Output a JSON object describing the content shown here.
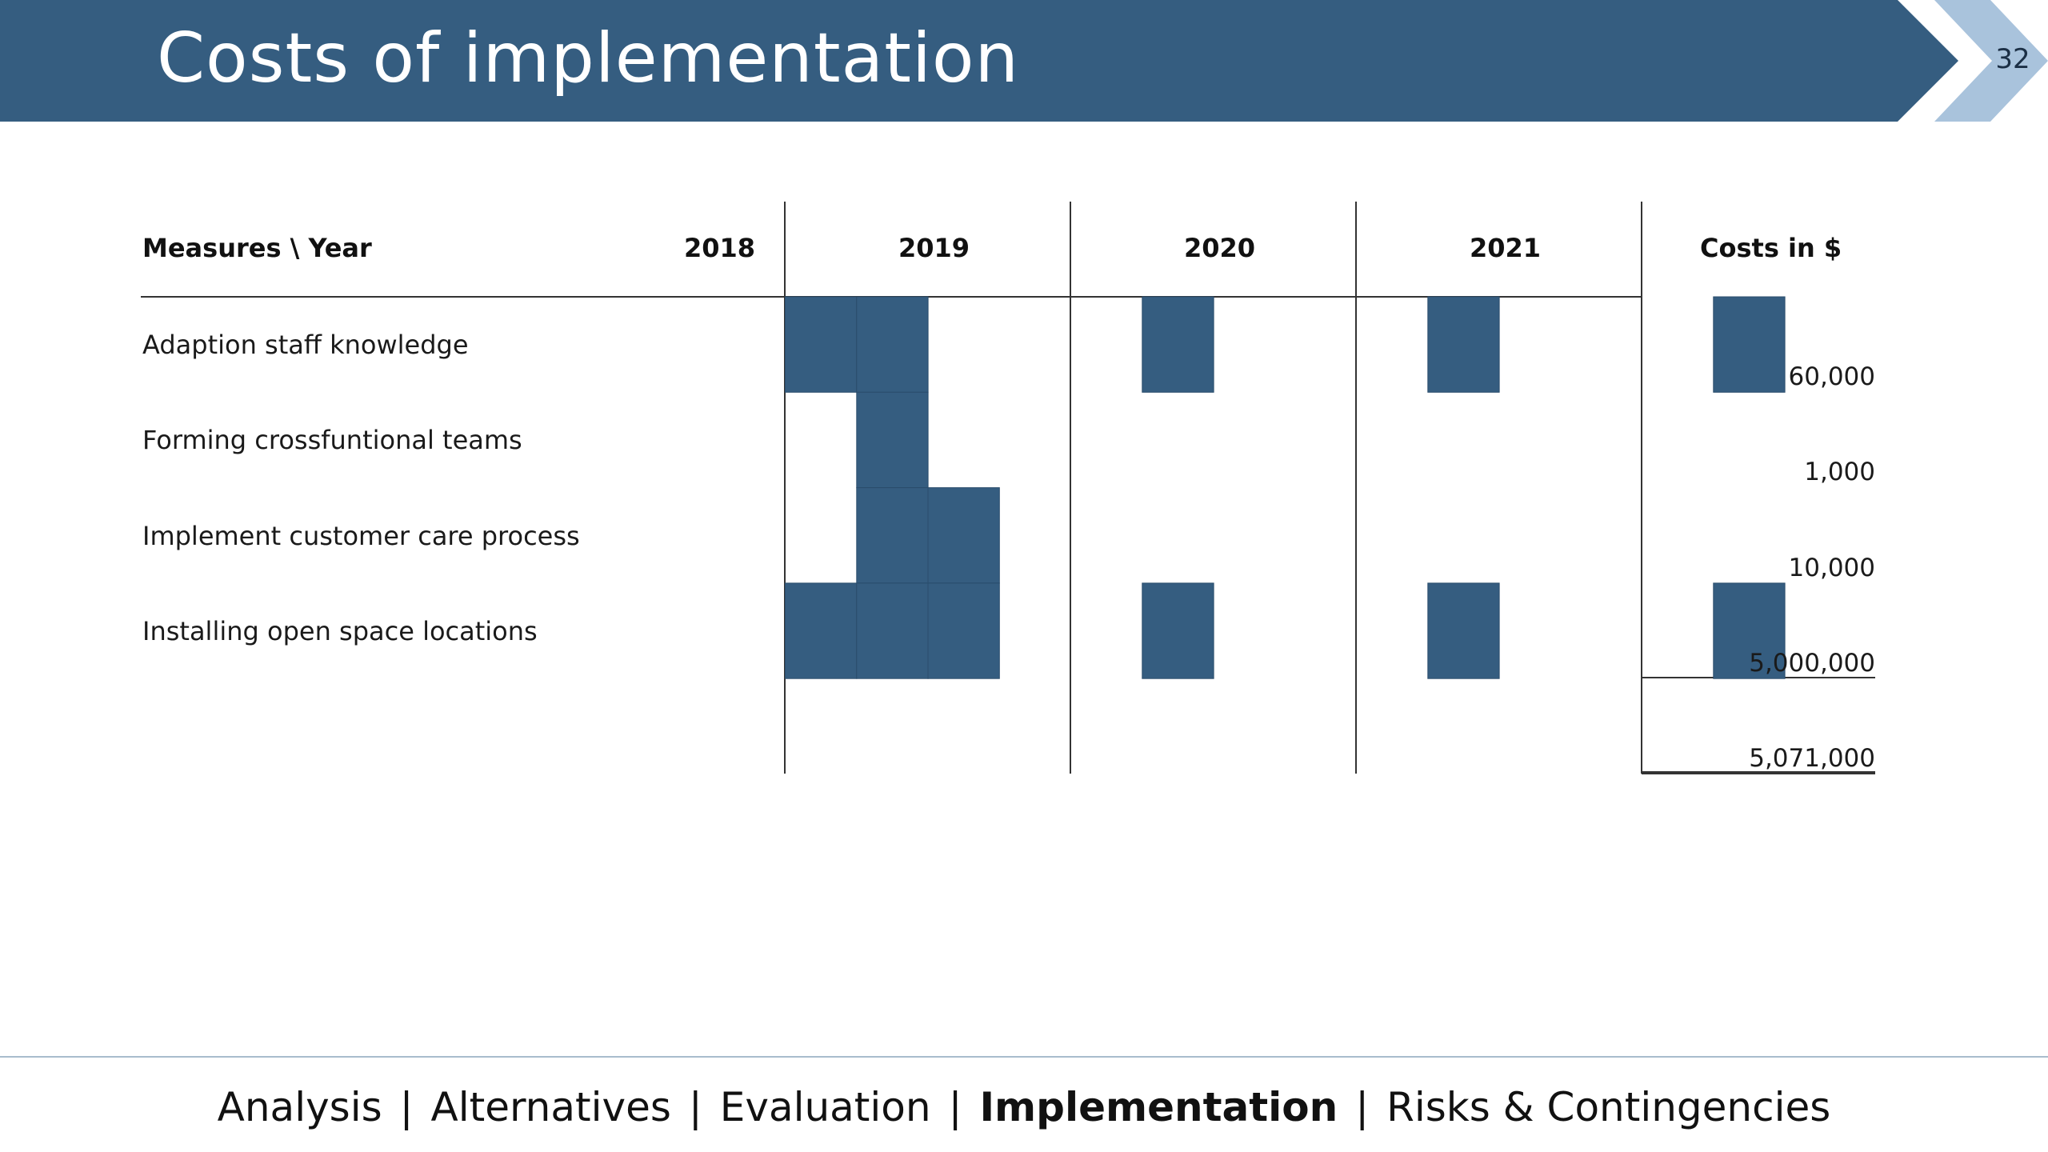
{
  "slide": {
    "title": "Costs of implementation",
    "page_number": "32",
    "banner_color": "#355d80",
    "chevron_color": "#a9c3dc",
    "bar_color": "#355d80"
  },
  "table": {
    "header_measures": "Measures \\ Year",
    "years": [
      "2018",
      "2019",
      "2020",
      "2021"
    ],
    "header_costs": "Costs in $",
    "rows": [
      {
        "label": "Adaption staff knowledge",
        "cost": "60,000"
      },
      {
        "label": "Forming crossfuntional teams",
        "cost": "1,000"
      },
      {
        "label": "Implement customer care process",
        "cost": "10,000"
      },
      {
        "label": "Installing open space locations",
        "cost": "5,000,000"
      }
    ],
    "total": "5,071,000"
  },
  "chart_data": {
    "type": "table",
    "title": "Costs of implementation",
    "columns": [
      "Measures \\ Year",
      "2018",
      "2019",
      "2020",
      "2021",
      "Costs in $"
    ],
    "quarters_per_year": 4,
    "series": [
      {
        "name": "Adaption staff knowledge",
        "active_quarters": [
          "2018-Q3",
          "2018-Q4",
          "2019-Q4",
          "2020-Q4",
          "2021-Q4"
        ],
        "cost": 60000
      },
      {
        "name": "Forming crossfuntional teams",
        "active_quarters": [
          "2018-Q4"
        ],
        "cost": 1000
      },
      {
        "name": "Implement customer care process",
        "active_quarters": [
          "2018-Q4",
          "2019-Q1"
        ],
        "cost": 10000
      },
      {
        "name": "Installing open space locations",
        "active_quarters": [
          "2018-Q3",
          "2018-Q4",
          "2019-Q1",
          "2019-Q4",
          "2020-Q4",
          "2021-Q4"
        ],
        "cost": 5000000
      }
    ],
    "total_cost": 5071000
  },
  "footer": {
    "nav": [
      {
        "label": "Analysis",
        "active": false
      },
      {
        "label": "Alternatives",
        "active": false
      },
      {
        "label": "Evaluation",
        "active": false
      },
      {
        "label": "Implementation",
        "active": true
      },
      {
        "label": "Risks & Contingencies",
        "active": false
      }
    ],
    "separator": "|"
  }
}
